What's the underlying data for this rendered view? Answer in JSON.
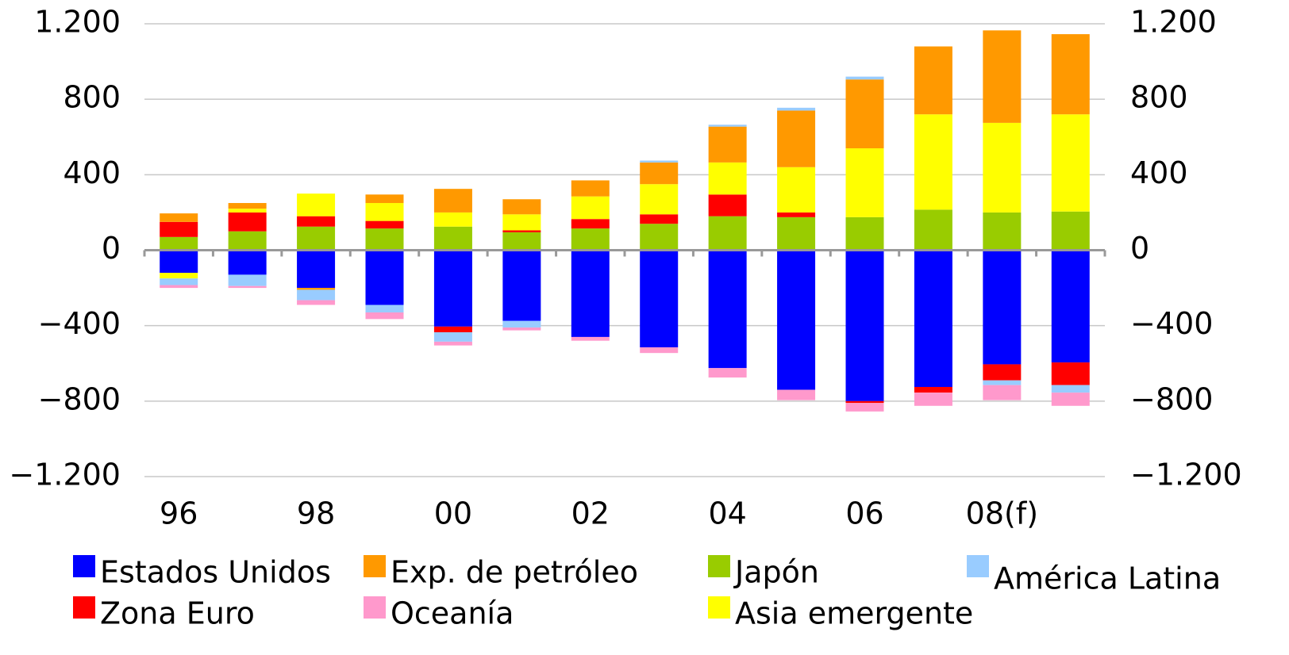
{
  "chart_data": {
    "type": "bar",
    "stacked": true,
    "categories": [
      "96",
      null,
      "98",
      null,
      "00",
      null,
      "02",
      null,
      "04",
      null,
      "06",
      null,
      "08(f)",
      null
    ],
    "series": [
      {
        "name": "Estados Unidos",
        "color": "#0000ff",
        "values": [
          -120,
          -130,
          -200,
          -290,
          -405,
          -375,
          -460,
          -515,
          -625,
          -740,
          -800,
          -725,
          -605,
          -595
        ]
      },
      {
        "name": "Zona Euro",
        "color": "#ff0000",
        "values": [
          80,
          100,
          55,
          40,
          -30,
          10,
          50,
          50,
          115,
          25,
          -10,
          -30,
          -85,
          -120
        ]
      },
      {
        "name": "Exp. de petróleo",
        "color": "#ff9900",
        "values": [
          45,
          30,
          -10,
          45,
          125,
          80,
          85,
          115,
          190,
          300,
          365,
          360,
          490,
          425
        ]
      },
      {
        "name": "Oceanía",
        "color": "#ff99cc",
        "values": [
          -15,
          -10,
          -25,
          -35,
          -20,
          -15,
          -20,
          -30,
          -50,
          -55,
          -45,
          -70,
          -80,
          -70
        ]
      },
      {
        "name": "Japón",
        "color": "#99cc00",
        "values": [
          70,
          100,
          125,
          115,
          125,
          95,
          115,
          140,
          180,
          175,
          175,
          215,
          200,
          205
        ]
      },
      {
        "name": "Asia emergente",
        "color": "#ffff00",
        "values": [
          -30,
          20,
          120,
          95,
          75,
          85,
          120,
          160,
          170,
          240,
          365,
          505,
          475,
          515
        ]
      },
      {
        "name": "América Latina",
        "color": "#99ccff",
        "values": [
          -35,
          -60,
          -55,
          -40,
          -50,
          -35,
          0,
          10,
          10,
          15,
          15,
          0,
          -25,
          -40
        ]
      }
    ],
    "ylim": [
      -1200,
      1200
    ],
    "yticks": [
      {
        "value": -1200,
        "label": "−1.200"
      },
      {
        "value": -800,
        "label": "−800"
      },
      {
        "value": -400,
        "label": "−400"
      },
      0,
      400,
      800,
      {
        "value": 1200,
        "label": "1.200"
      }
    ],
    "y2lim": [
      -1200,
      1200
    ],
    "y2ticks": [
      {
        "value": -1200,
        "label": "−1.200"
      },
      {
        "value": -800,
        "label": "−800"
      },
      {
        "value": -400,
        "label": "−400"
      },
      0,
      400,
      800,
      {
        "value": 1200,
        "label": "1.200"
      }
    ],
    "grid": true
  }
}
